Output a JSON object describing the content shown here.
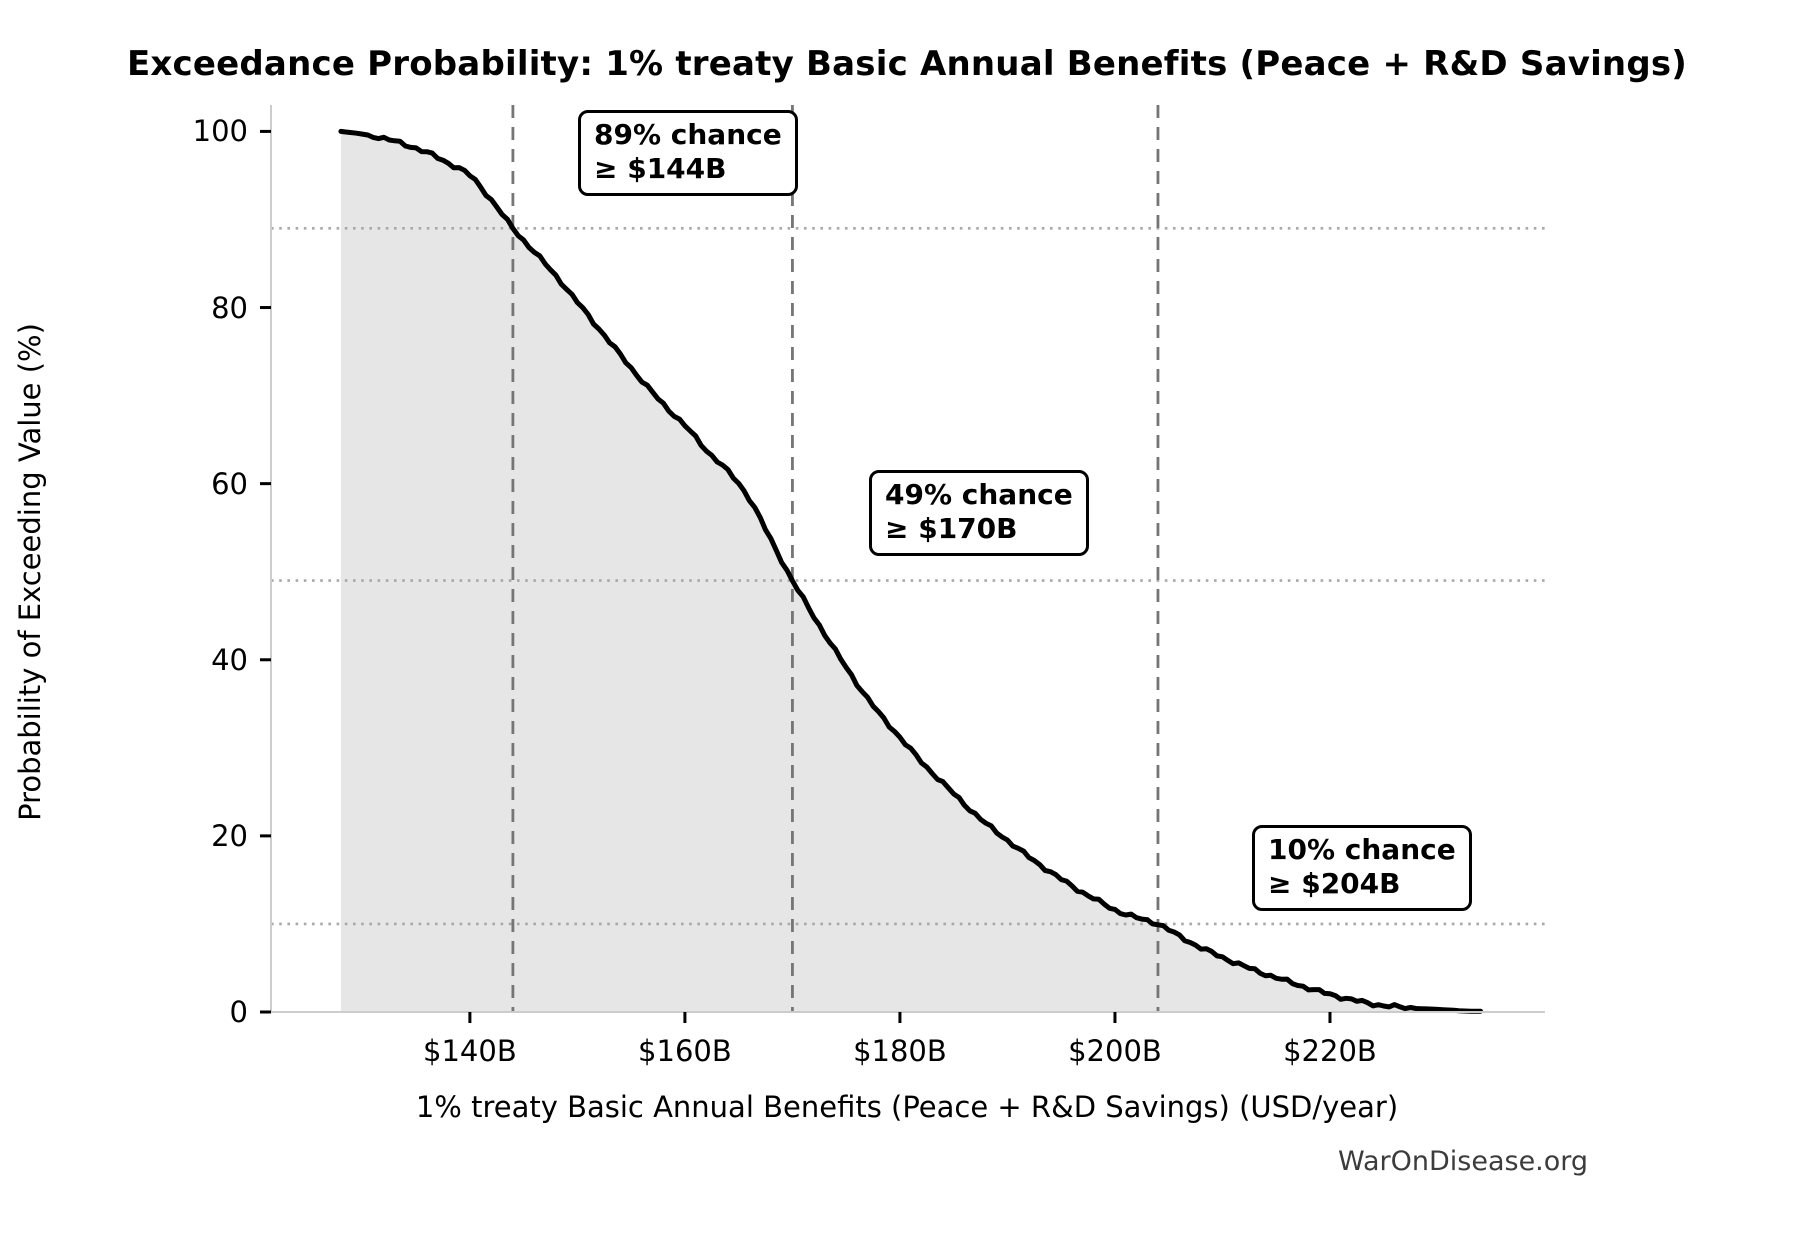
{
  "title": "Exceedance Probability: 1% treaty Basic Annual Benefits (Peace + R&D Savings)",
  "watermark": "WarOnDisease.org",
  "chart_data": {
    "type": "area",
    "title": "Exceedance Probability: 1% treaty Basic Annual Benefits (Peace + R&D Savings)",
    "xlabel": "1% treaty Basic Annual Benefits (Peace + R&D Savings) (USD/year)",
    "ylabel": "Probability of Exceeding Value (%)",
    "xlim": [
      121.5,
      240
    ],
    "ylim": [
      0,
      103
    ],
    "grid": "reference-lines-only",
    "legend": "none",
    "x_ticks": [
      140,
      160,
      180,
      200,
      220
    ],
    "x_tick_labels": [
      "$140B",
      "$160B",
      "$180B",
      "$200B",
      "$220B"
    ],
    "y_ticks": [
      0,
      20,
      40,
      60,
      80,
      100
    ],
    "y_tick_labels": [
      "0",
      "20",
      "40",
      "60",
      "80",
      "100"
    ],
    "series": [
      {
        "name": "exceedance-curve",
        "x_billions": [
          128,
          130,
          132,
          134,
          136,
          138,
          140,
          142,
          144,
          146,
          148,
          150,
          152,
          154,
          156,
          158,
          160,
          162,
          164,
          166,
          168,
          170,
          172,
          174,
          176,
          178,
          180,
          182,
          184,
          186,
          188,
          190,
          192,
          194,
          196,
          198,
          200,
          202,
          204,
          206,
          208,
          210,
          212,
          214,
          216,
          218,
          220,
          222,
          224,
          226,
          228,
          230,
          232,
          234
        ],
        "probability_pct": [
          100,
          99.7,
          99.2,
          98.5,
          97.6,
          96.4,
          95,
          92.2,
          89,
          86.3,
          83.6,
          80.6,
          77.6,
          74.6,
          71.7,
          69,
          66.6,
          63.8,
          61.4,
          58.3,
          53.6,
          49,
          44.9,
          41,
          37.3,
          34,
          31.2,
          28.4,
          26,
          23.6,
          21.4,
          19.5,
          17.6,
          15.9,
          14.3,
          12.9,
          11.6,
          10.7,
          10,
          8.6,
          7.3,
          6.2,
          5.2,
          4.3,
          3.5,
          2.7,
          2,
          1.4,
          0.9,
          0.6,
          0.4,
          0.3,
          0.15,
          0
        ]
      }
    ],
    "annotations": [
      {
        "line1": "89% chance",
        "line2": "≥ $144B",
        "value_billions": 144,
        "probability_pct": 89
      },
      {
        "line1": "49% chance",
        "line2": "≥ $170B",
        "value_billions": 170,
        "probability_pct": 49
      },
      {
        "line1": "10% chance",
        "line2": "≥ $204B",
        "value_billions": 204,
        "probability_pct": 10
      }
    ],
    "reference_lines": {
      "vertical_values_billions": [
        144,
        170,
        204
      ],
      "horizontal_probabilities_pct": [
        89,
        49,
        10
      ]
    },
    "colors": {
      "curve": "#000000",
      "fill": "#e6e6e6",
      "dashed_vline": "#757575",
      "dotted_hline": "#a8a8a8",
      "axis_spine": "#cccccc",
      "tick_mark": "#000000",
      "text": "#000000",
      "watermark": "#3c3c3c",
      "background": "#ffffff"
    }
  }
}
